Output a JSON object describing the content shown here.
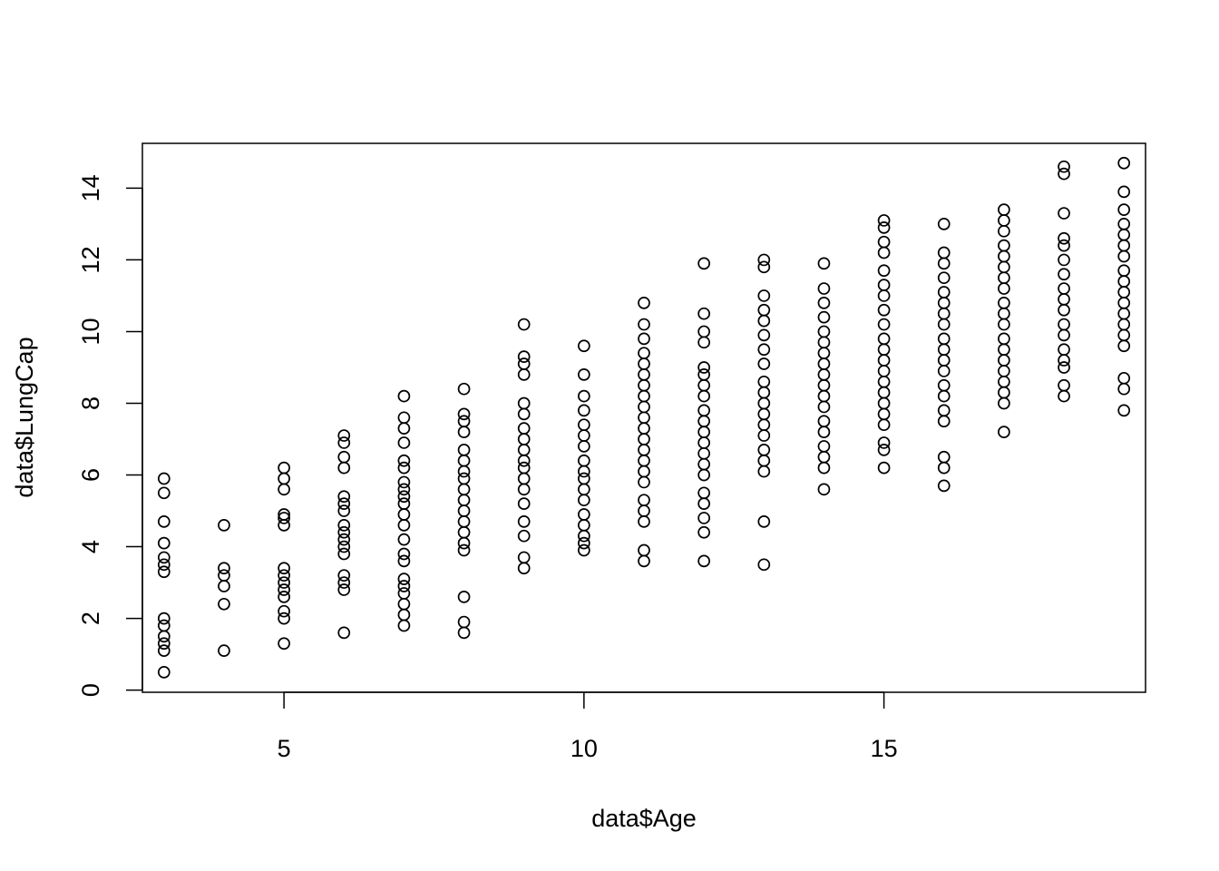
{
  "chart_data": {
    "type": "scatter",
    "title": "",
    "xlabel": "data$Age",
    "ylabel": "data$LungCap",
    "xlim": [
      2.64,
      19.36
    ],
    "ylim": [
      -0.06,
      15.25
    ],
    "x_ticks": [
      5,
      10,
      15
    ],
    "y_ticks": [
      0,
      2,
      4,
      6,
      8,
      10,
      12,
      14
    ],
    "grid": false,
    "legend": "none",
    "marker": "open-circle",
    "colors": {
      "point": "#000000",
      "axis": "#000000",
      "background": "#ffffff"
    },
    "series": [
      {
        "points": [
          [
            3,
            0.5
          ],
          [
            3,
            1.1
          ],
          [
            3,
            1.3
          ],
          [
            3,
            1.5
          ],
          [
            3,
            1.8
          ],
          [
            3,
            2.0
          ],
          [
            3,
            3.3
          ],
          [
            3,
            3.5
          ],
          [
            3,
            3.7
          ],
          [
            3,
            4.1
          ],
          [
            3,
            4.7
          ],
          [
            3,
            5.5
          ],
          [
            3,
            5.9
          ],
          [
            4,
            1.1
          ],
          [
            4,
            2.4
          ],
          [
            4,
            2.9
          ],
          [
            4,
            3.2
          ],
          [
            4,
            3.4
          ],
          [
            4,
            4.6
          ],
          [
            5,
            1.3
          ],
          [
            5,
            2.0
          ],
          [
            5,
            2.2
          ],
          [
            5,
            2.6
          ],
          [
            5,
            2.8
          ],
          [
            5,
            3.0
          ],
          [
            5,
            3.2
          ],
          [
            5,
            3.4
          ],
          [
            5,
            4.6
          ],
          [
            5,
            4.8
          ],
          [
            5,
            4.9
          ],
          [
            5,
            5.6
          ],
          [
            5,
            5.9
          ],
          [
            5,
            6.2
          ],
          [
            6,
            1.6
          ],
          [
            6,
            2.8
          ],
          [
            6,
            3.0
          ],
          [
            6,
            3.2
          ],
          [
            6,
            3.8
          ],
          [
            6,
            4.0
          ],
          [
            6,
            4.2
          ],
          [
            6,
            4.4
          ],
          [
            6,
            4.6
          ],
          [
            6,
            5.0
          ],
          [
            6,
            5.2
          ],
          [
            6,
            5.4
          ],
          [
            6,
            6.2
          ],
          [
            6,
            6.5
          ],
          [
            6,
            6.9
          ],
          [
            6,
            7.1
          ],
          [
            7,
            1.8
          ],
          [
            7,
            2.1
          ],
          [
            7,
            2.4
          ],
          [
            7,
            2.7
          ],
          [
            7,
            2.9
          ],
          [
            7,
            3.1
          ],
          [
            7,
            3.6
          ],
          [
            7,
            3.8
          ],
          [
            7,
            4.2
          ],
          [
            7,
            4.6
          ],
          [
            7,
            4.9
          ],
          [
            7,
            5.2
          ],
          [
            7,
            5.4
          ],
          [
            7,
            5.6
          ],
          [
            7,
            5.8
          ],
          [
            7,
            6.2
          ],
          [
            7,
            6.4
          ],
          [
            7,
            6.9
          ],
          [
            7,
            7.3
          ],
          [
            7,
            7.6
          ],
          [
            7,
            8.2
          ],
          [
            8,
            1.6
          ],
          [
            8,
            1.9
          ],
          [
            8,
            2.6
          ],
          [
            8,
            3.9
          ],
          [
            8,
            4.1
          ],
          [
            8,
            4.4
          ],
          [
            8,
            4.7
          ],
          [
            8,
            5.0
          ],
          [
            8,
            5.3
          ],
          [
            8,
            5.6
          ],
          [
            8,
            5.9
          ],
          [
            8,
            6.1
          ],
          [
            8,
            6.4
          ],
          [
            8,
            6.7
          ],
          [
            8,
            7.2
          ],
          [
            8,
            7.5
          ],
          [
            8,
            7.7
          ],
          [
            8,
            8.4
          ],
          [
            9,
            3.4
          ],
          [
            9,
            3.7
          ],
          [
            9,
            4.3
          ],
          [
            9,
            4.7
          ],
          [
            9,
            5.2
          ],
          [
            9,
            5.6
          ],
          [
            9,
            5.9
          ],
          [
            9,
            6.2
          ],
          [
            9,
            6.4
          ],
          [
            9,
            6.7
          ],
          [
            9,
            7.0
          ],
          [
            9,
            7.3
          ],
          [
            9,
            7.7
          ],
          [
            9,
            8.0
          ],
          [
            9,
            8.8
          ],
          [
            9,
            9.1
          ],
          [
            9,
            9.3
          ],
          [
            9,
            10.2
          ],
          [
            10,
            3.9
          ],
          [
            10,
            4.1
          ],
          [
            10,
            4.3
          ],
          [
            10,
            4.6
          ],
          [
            10,
            4.9
          ],
          [
            10,
            5.3
          ],
          [
            10,
            5.6
          ],
          [
            10,
            5.9
          ],
          [
            10,
            6.1
          ],
          [
            10,
            6.4
          ],
          [
            10,
            6.8
          ],
          [
            10,
            7.1
          ],
          [
            10,
            7.4
          ],
          [
            10,
            7.8
          ],
          [
            10,
            8.2
          ],
          [
            10,
            8.8
          ],
          [
            10,
            9.6
          ],
          [
            11,
            3.6
          ],
          [
            11,
            3.9
          ],
          [
            11,
            4.7
          ],
          [
            11,
            5.0
          ],
          [
            11,
            5.3
          ],
          [
            11,
            5.8
          ],
          [
            11,
            6.1
          ],
          [
            11,
            6.4
          ],
          [
            11,
            6.7
          ],
          [
            11,
            7.0
          ],
          [
            11,
            7.3
          ],
          [
            11,
            7.6
          ],
          [
            11,
            7.9
          ],
          [
            11,
            8.2
          ],
          [
            11,
            8.5
          ],
          [
            11,
            8.8
          ],
          [
            11,
            9.1
          ],
          [
            11,
            9.4
          ],
          [
            11,
            9.8
          ],
          [
            11,
            10.2
          ],
          [
            11,
            10.8
          ],
          [
            12,
            3.6
          ],
          [
            12,
            4.4
          ],
          [
            12,
            4.8
          ],
          [
            12,
            5.2
          ],
          [
            12,
            5.5
          ],
          [
            12,
            6.0
          ],
          [
            12,
            6.3
          ],
          [
            12,
            6.6
          ],
          [
            12,
            6.9
          ],
          [
            12,
            7.2
          ],
          [
            12,
            7.5
          ],
          [
            12,
            7.8
          ],
          [
            12,
            8.2
          ],
          [
            12,
            8.5
          ],
          [
            12,
            8.8
          ],
          [
            12,
            9.0
          ],
          [
            12,
            9.7
          ],
          [
            12,
            10.0
          ],
          [
            12,
            10.5
          ],
          [
            12,
            11.9
          ],
          [
            13,
            3.5
          ],
          [
            13,
            4.7
          ],
          [
            13,
            6.1
          ],
          [
            13,
            6.4
          ],
          [
            13,
            6.7
          ],
          [
            13,
            7.1
          ],
          [
            13,
            7.4
          ],
          [
            13,
            7.7
          ],
          [
            13,
            8.0
          ],
          [
            13,
            8.3
          ],
          [
            13,
            8.6
          ],
          [
            13,
            9.1
          ],
          [
            13,
            9.5
          ],
          [
            13,
            9.9
          ],
          [
            13,
            10.3
          ],
          [
            13,
            10.6
          ],
          [
            13,
            11.0
          ],
          [
            13,
            11.8
          ],
          [
            13,
            12.0
          ],
          [
            14,
            5.6
          ],
          [
            14,
            6.2
          ],
          [
            14,
            6.5
          ],
          [
            14,
            6.8
          ],
          [
            14,
            7.2
          ],
          [
            14,
            7.5
          ],
          [
            14,
            7.9
          ],
          [
            14,
            8.2
          ],
          [
            14,
            8.5
          ],
          [
            14,
            8.8
          ],
          [
            14,
            9.1
          ],
          [
            14,
            9.4
          ],
          [
            14,
            9.7
          ],
          [
            14,
            10.0
          ],
          [
            14,
            10.4
          ],
          [
            14,
            10.8
          ],
          [
            14,
            11.2
          ],
          [
            14,
            11.9
          ],
          [
            15,
            6.2
          ],
          [
            15,
            6.7
          ],
          [
            15,
            6.9
          ],
          [
            15,
            7.4
          ],
          [
            15,
            7.7
          ],
          [
            15,
            8.0
          ],
          [
            15,
            8.3
          ],
          [
            15,
            8.6
          ],
          [
            15,
            8.9
          ],
          [
            15,
            9.2
          ],
          [
            15,
            9.5
          ],
          [
            15,
            9.8
          ],
          [
            15,
            10.2
          ],
          [
            15,
            10.6
          ],
          [
            15,
            11.0
          ],
          [
            15,
            11.3
          ],
          [
            15,
            11.7
          ],
          [
            15,
            12.2
          ],
          [
            15,
            12.5
          ],
          [
            15,
            12.9
          ],
          [
            15,
            13.1
          ],
          [
            16,
            5.7
          ],
          [
            16,
            6.2
          ],
          [
            16,
            6.5
          ],
          [
            16,
            7.5
          ],
          [
            16,
            7.8
          ],
          [
            16,
            8.2
          ],
          [
            16,
            8.5
          ],
          [
            16,
            8.9
          ],
          [
            16,
            9.2
          ],
          [
            16,
            9.5
          ],
          [
            16,
            9.8
          ],
          [
            16,
            10.2
          ],
          [
            16,
            10.5
          ],
          [
            16,
            10.8
          ],
          [
            16,
            11.1
          ],
          [
            16,
            11.5
          ],
          [
            16,
            11.9
          ],
          [
            16,
            12.2
          ],
          [
            16,
            13.0
          ],
          [
            17,
            7.2
          ],
          [
            17,
            8.0
          ],
          [
            17,
            8.3
          ],
          [
            17,
            8.6
          ],
          [
            17,
            8.9
          ],
          [
            17,
            9.2
          ],
          [
            17,
            9.5
          ],
          [
            17,
            9.8
          ],
          [
            17,
            10.2
          ],
          [
            17,
            10.5
          ],
          [
            17,
            10.8
          ],
          [
            17,
            11.2
          ],
          [
            17,
            11.5
          ],
          [
            17,
            11.8
          ],
          [
            17,
            12.1
          ],
          [
            17,
            12.4
          ],
          [
            17,
            12.8
          ],
          [
            17,
            13.1
          ],
          [
            17,
            13.4
          ],
          [
            18,
            8.2
          ],
          [
            18,
            8.5
          ],
          [
            18,
            9.0
          ],
          [
            18,
            9.2
          ],
          [
            18,
            9.5
          ],
          [
            18,
            9.9
          ],
          [
            18,
            10.2
          ],
          [
            18,
            10.6
          ],
          [
            18,
            10.9
          ],
          [
            18,
            11.2
          ],
          [
            18,
            11.6
          ],
          [
            18,
            12.0
          ],
          [
            18,
            12.4
          ],
          [
            18,
            12.6
          ],
          [
            18,
            13.3
          ],
          [
            18,
            14.4
          ],
          [
            18,
            14.6
          ],
          [
            19,
            7.8
          ],
          [
            19,
            8.4
          ],
          [
            19,
            8.7
          ],
          [
            19,
            9.6
          ],
          [
            19,
            9.9
          ],
          [
            19,
            10.2
          ],
          [
            19,
            10.5
          ],
          [
            19,
            10.8
          ],
          [
            19,
            11.1
          ],
          [
            19,
            11.4
          ],
          [
            19,
            11.7
          ],
          [
            19,
            12.1
          ],
          [
            19,
            12.4
          ],
          [
            19,
            12.7
          ],
          [
            19,
            13.0
          ],
          [
            19,
            13.4
          ],
          [
            19,
            13.9
          ],
          [
            19,
            14.7
          ]
        ]
      }
    ]
  }
}
